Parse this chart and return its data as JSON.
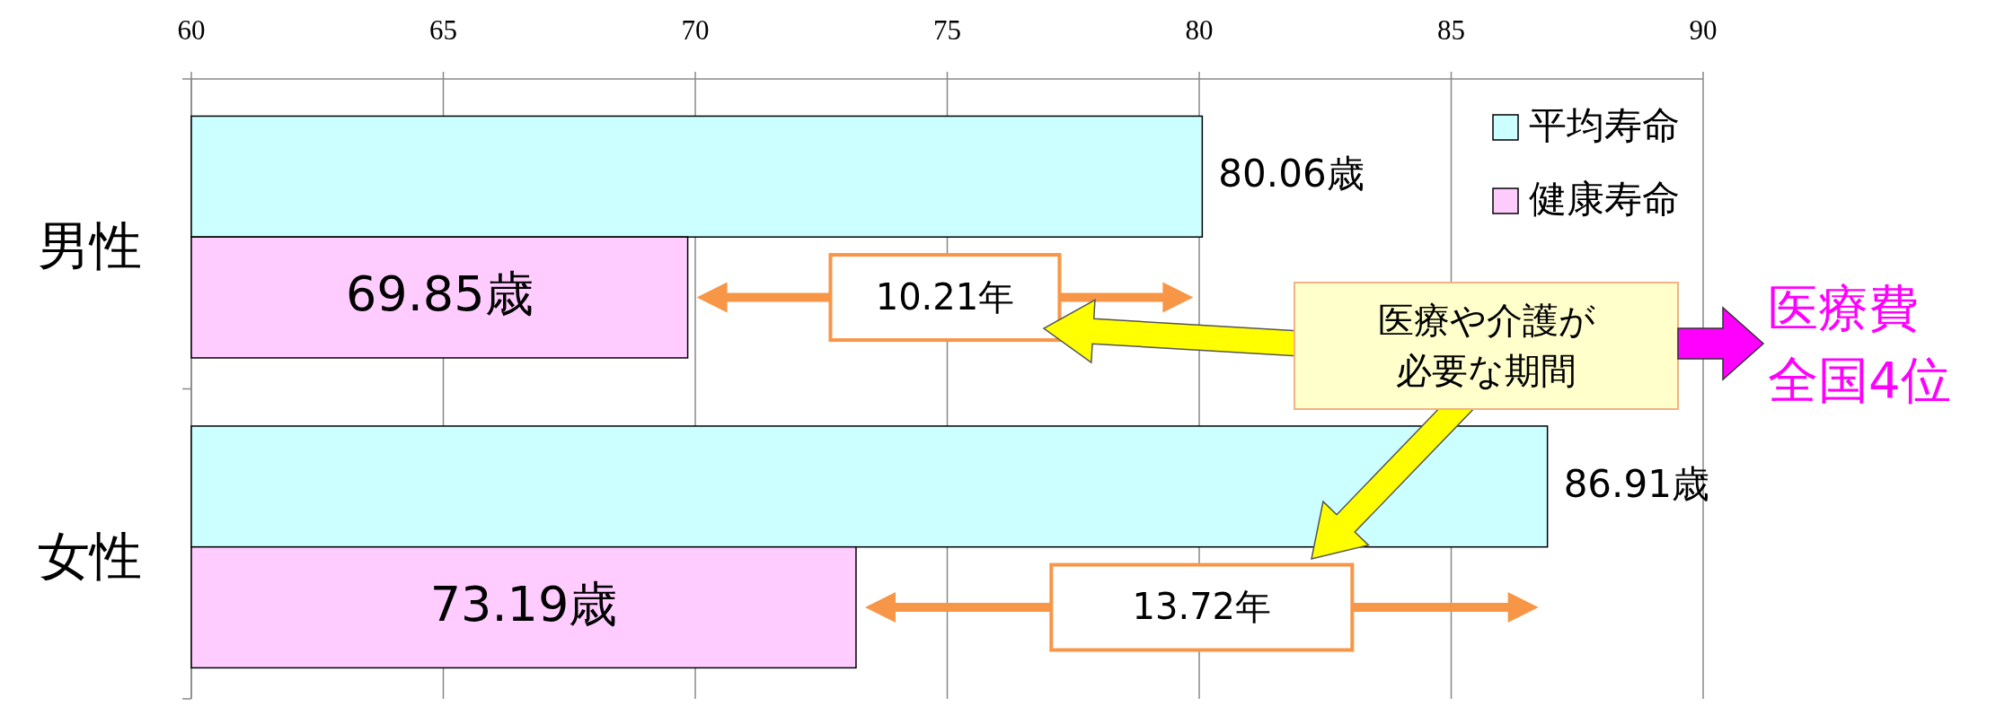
{
  "chart_data": {
    "type": "bar",
    "orientation": "horizontal",
    "categories": [
      "男性",
      "女性"
    ],
    "series": [
      {
        "name": "平均寿命",
        "color": "#ccffff",
        "values": [
          80.06,
          86.91
        ],
        "value_labels": [
          "80.06歳",
          "86.91歳"
        ]
      },
      {
        "name": "健康寿命",
        "color": "#ffccff",
        "values": [
          69.85,
          73.19
        ],
        "value_labels": [
          "69.85歳",
          "73.19歳"
        ]
      }
    ],
    "xlim": [
      60,
      90
    ],
    "xticks": [
      60,
      65,
      70,
      75,
      80,
      85,
      90
    ],
    "grid": "x",
    "legend": "top right",
    "annotations": [
      "10.21年",
      "13.72年",
      "医療や介護が",
      "必要な期間",
      "医療費",
      "全国4位"
    ]
  }
}
